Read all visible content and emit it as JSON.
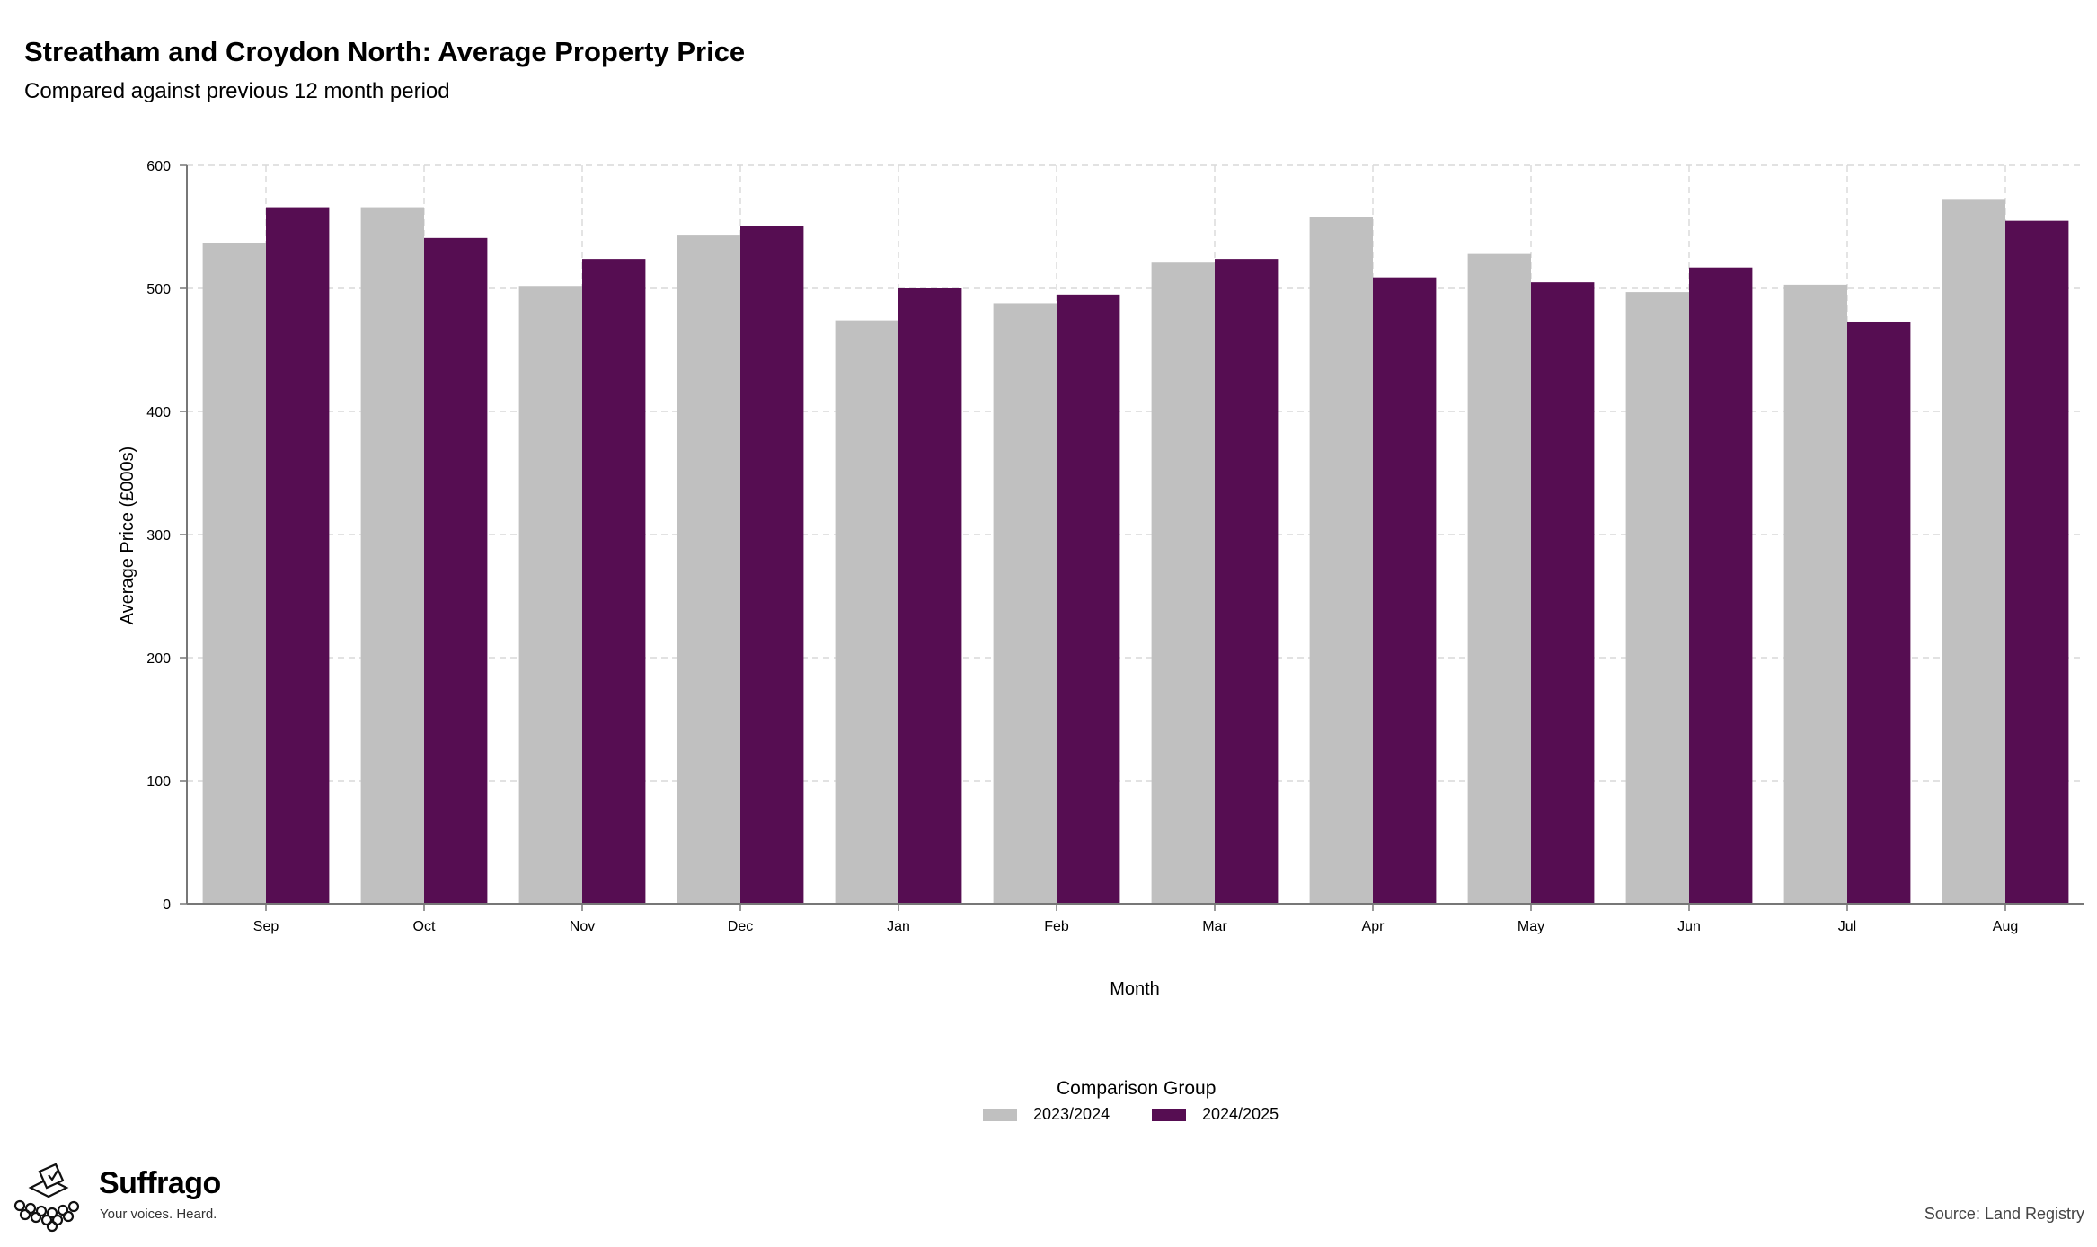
{
  "chart_data": {
    "type": "bar",
    "title": "Streatham and Croydon North: Average Property Price",
    "subtitle": "Compared against previous 12 month period",
    "xlabel": "Month",
    "ylabel": "Average Price (£000s)",
    "ylim": [
      0,
      600
    ],
    "yticks": [
      0,
      100,
      200,
      300,
      400,
      500,
      600
    ],
    "grid": true,
    "legend_title": "Comparison Group",
    "legend_position": "bottom",
    "categories": [
      "Sep",
      "Oct",
      "Nov",
      "Dec",
      "Jan",
      "Feb",
      "Mar",
      "Apr",
      "May",
      "Jun",
      "Jul",
      "Aug"
    ],
    "series": [
      {
        "name": "2023/2024",
        "color": "#c0c0c0",
        "values": [
          537,
          566,
          502,
          543,
          474,
          488,
          521,
          558,
          528,
          497,
          503,
          572
        ]
      },
      {
        "name": "2024/2025",
        "color": "#560d52",
        "values": [
          566,
          541,
          524,
          551,
          500,
          495,
          524,
          509,
          505,
          517,
          473,
          555
        ]
      }
    ]
  },
  "branding": {
    "name": "Suffrago",
    "tagline": "Your voices. Heard."
  },
  "source": "Source: Land Registry"
}
